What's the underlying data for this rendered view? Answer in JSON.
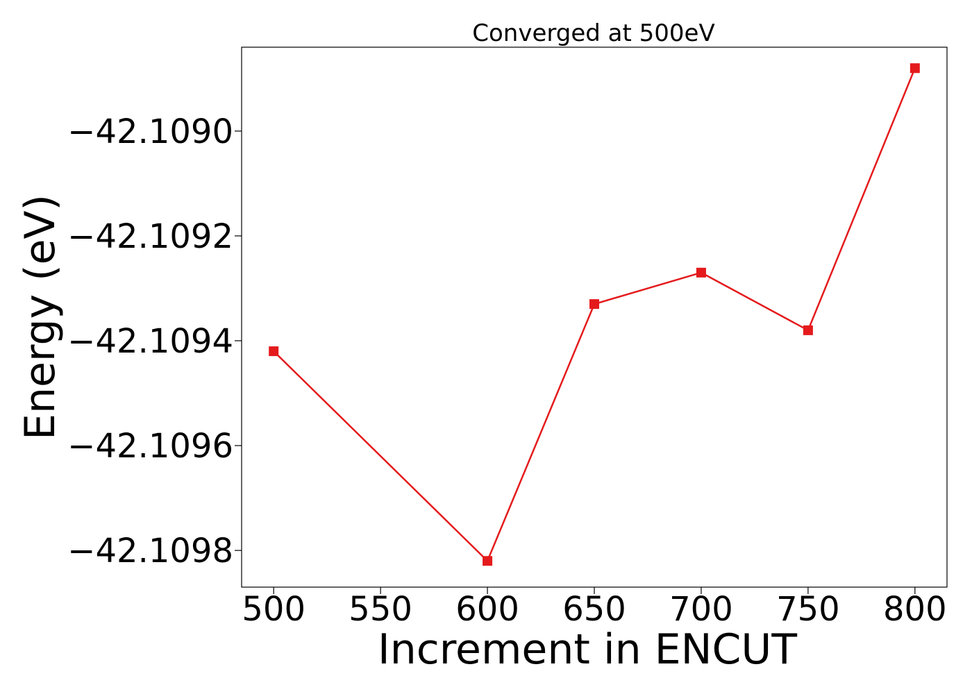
{
  "chart_data": {
    "type": "line",
    "title": "Converged at 500eV",
    "xlabel": "Increment in ENCUT",
    "ylabel": "Energy (eV)",
    "x": [
      500,
      600,
      650,
      700,
      750,
      800
    ],
    "series": [
      {
        "values": [
          -42.10942,
          -42.10982,
          -42.10933,
          -42.10927,
          -42.10938,
          -42.10888
        ],
        "color": "#e41a1c",
        "marker": "square"
      }
    ],
    "xticks": [
      500,
      550,
      600,
      650,
      700,
      750,
      800
    ],
    "xtick_labels": [
      "500",
      "550",
      "600",
      "650",
      "700",
      "750",
      "800"
    ],
    "yticks": [
      -42.1098,
      -42.1096,
      -42.1094,
      -42.1092,
      -42.109
    ],
    "ytick_labels": [
      "−42.1098",
      "−42.1096",
      "−42.1094",
      "−42.1092",
      "−42.1090"
    ],
    "xlim": [
      485,
      815
    ],
    "ylim": [
      -42.10987,
      -42.10884
    ],
    "grid": false,
    "legend": "none"
  }
}
